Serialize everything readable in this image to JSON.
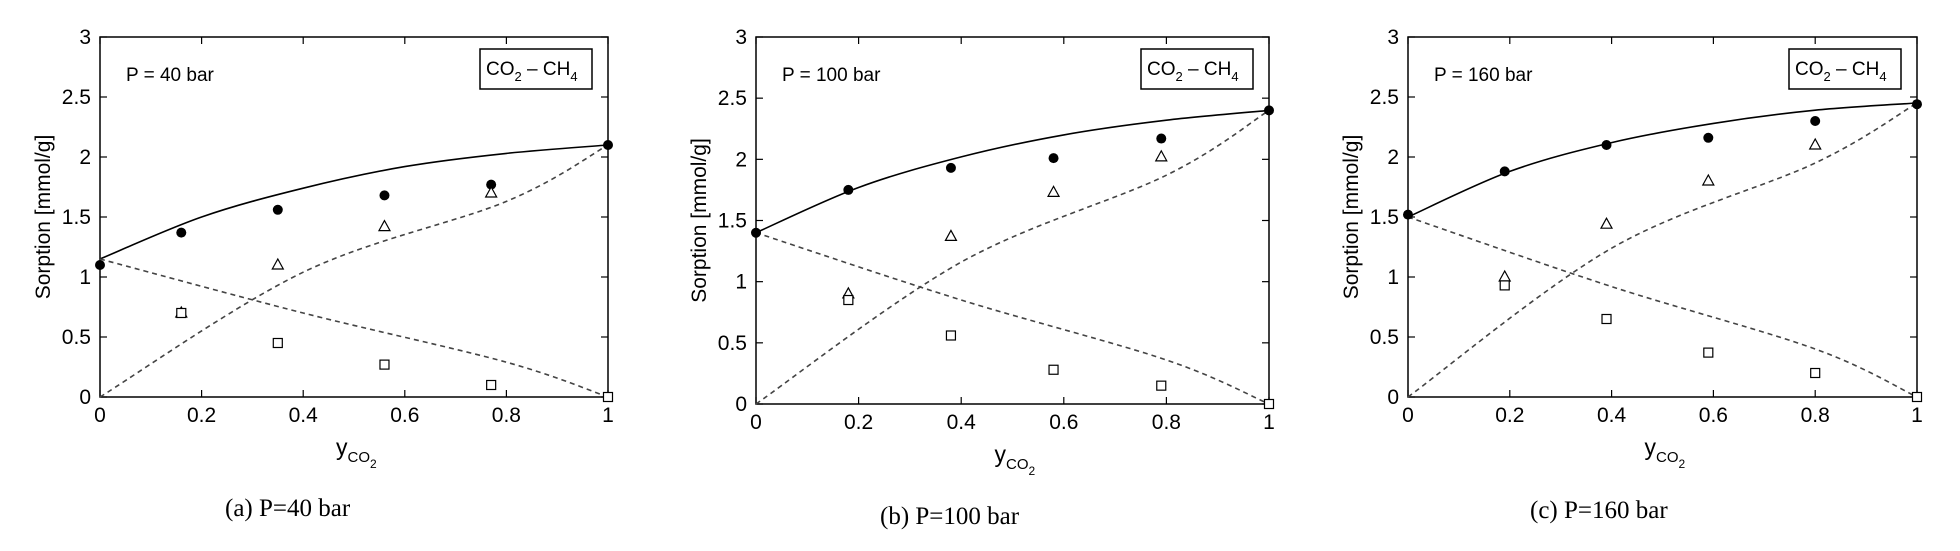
{
  "chart_data": [
    {
      "type": "scatter",
      "caption": "(a) P=40 bar",
      "pressure_label": "P = 40 bar",
      "system_label": {
        "main": "CO",
        "sub": "2",
        "rest": " – CH",
        "sub2": "4"
      },
      "xlabel": {
        "main": "y",
        "sub": "CO",
        "subsub": "2"
      },
      "ylabel": "Sorption [mmol/g]",
      "xlim": [
        0,
        1
      ],
      "ylim": [
        0,
        3
      ],
      "xticks": [
        "0",
        "0.2",
        "0.4",
        "0.6",
        "0.8",
        "1"
      ],
      "yticks": [
        "0",
        "0.5",
        "1",
        "1.5",
        "2",
        "2.5",
        "3"
      ],
      "grid": false,
      "series": [
        {
          "marker": "filled-circle",
          "line": "solid",
          "x": [
            0,
            0.16,
            0.35,
            0.56,
            0.77,
            1
          ],
          "y": [
            1.1,
            1.37,
            1.56,
            1.68,
            1.77,
            2.1
          ],
          "model": [
            1.15,
            1.5,
            1.74,
            1.92,
            2.03,
            2.1
          ]
        },
        {
          "marker": "open-triangle",
          "line": "dashed",
          "x": [
            0.16,
            0.35,
            0.56,
            0.77
          ],
          "y": [
            0.7,
            1.1,
            1.42,
            1.7
          ],
          "model": [
            0,
            1.04,
            1.63,
            2.1
          ]
        },
        {
          "marker": "open-square",
          "line": "dashed",
          "x": [
            0.16,
            0.35,
            0.56,
            0.77,
            1
          ],
          "y": [
            0.7,
            0.45,
            0.27,
            0.1,
            0
          ],
          "model": [
            1.15,
            0.7,
            0.29,
            0
          ]
        }
      ]
    },
    {
      "type": "scatter",
      "caption": "(b) P=100 bar",
      "pressure_label": "P = 100 bar",
      "system_label": {
        "main": "CO",
        "sub": "2",
        "rest": " – CH",
        "sub2": "4"
      },
      "xlabel": {
        "main": "y",
        "sub": "CO",
        "subsub": "2"
      },
      "ylabel": "Sorption [mmol/g]",
      "xlim": [
        0,
        1
      ],
      "ylim": [
        0,
        3
      ],
      "xticks": [
        "0",
        "0.2",
        "0.4",
        "0.6",
        "0.8",
        "1"
      ],
      "yticks": [
        "0",
        "0.5",
        "1",
        "1.5",
        "2",
        "2.5",
        "3"
      ],
      "grid": false,
      "series": [
        {
          "marker": "filled-circle",
          "line": "solid",
          "x": [
            0,
            0.18,
            0.38,
            0.58,
            0.79,
            1
          ],
          "y": [
            1.4,
            1.75,
            1.93,
            2.01,
            2.17,
            2.4
          ],
          "model": [
            1.4,
            1.77,
            2.02,
            2.2,
            2.32,
            2.4
          ]
        },
        {
          "marker": "open-triangle",
          "line": "dashed",
          "x": [
            0.18,
            0.38,
            0.58,
            0.79
          ],
          "y": [
            0.9,
            1.37,
            1.73,
            2.02
          ],
          "model": [
            0,
            1.16,
            1.87,
            2.4
          ]
        },
        {
          "marker": "open-square",
          "line": "dashed",
          "x": [
            0.18,
            0.38,
            0.58,
            0.79,
            1
          ],
          "y": [
            0.85,
            0.56,
            0.28,
            0.15,
            0
          ],
          "model": [
            1.4,
            0.85,
            0.36,
            0
          ]
        }
      ]
    },
    {
      "type": "scatter",
      "caption": "(c) P=160 bar",
      "pressure_label": "P = 160 bar",
      "system_label": {
        "main": "CO",
        "sub": "2",
        "rest": " – CH",
        "sub2": "4"
      },
      "xlabel": {
        "main": "y",
        "sub": "CO",
        "subsub": "2"
      },
      "ylabel": "Sorption [mmol/g]",
      "xlim": [
        0,
        1
      ],
      "ylim": [
        0,
        3
      ],
      "xticks": [
        "0",
        "0.2",
        "0.4",
        "0.6",
        "0.8",
        "1"
      ],
      "yticks": [
        "0",
        "0.5",
        "1",
        "1.5",
        "2",
        "2.5",
        "3"
      ],
      "grid": false,
      "series": [
        {
          "marker": "filled-circle",
          "line": "solid",
          "x": [
            0,
            0.19,
            0.39,
            0.59,
            0.8,
            1
          ],
          "y": [
            1.52,
            1.88,
            2.1,
            2.16,
            2.3,
            2.44
          ],
          "model": [
            1.5,
            1.88,
            2.12,
            2.28,
            2.39,
            2.45
          ]
        },
        {
          "marker": "open-triangle",
          "line": "dashed",
          "x": [
            0.19,
            0.39,
            0.59,
            0.8
          ],
          "y": [
            1.0,
            1.44,
            1.8,
            2.1
          ],
          "model": [
            0,
            1.24,
            1.95,
            2.45
          ]
        },
        {
          "marker": "open-square",
          "line": "dashed",
          "x": [
            0.19,
            0.39,
            0.59,
            0.8,
            1
          ],
          "y": [
            0.93,
            0.65,
            0.37,
            0.2,
            0
          ],
          "model": [
            1.5,
            0.92,
            0.4,
            0
          ]
        }
      ]
    }
  ]
}
